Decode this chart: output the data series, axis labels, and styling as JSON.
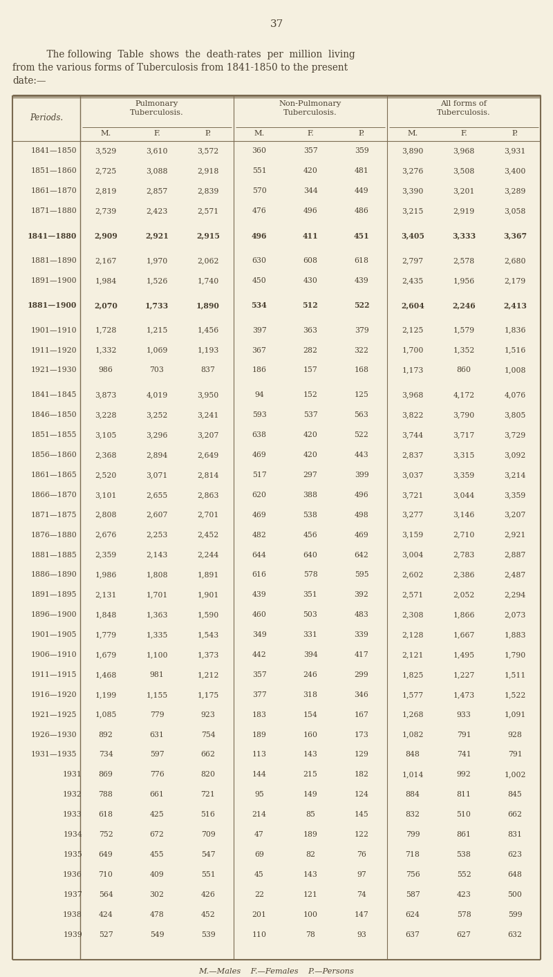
{
  "page_number": "37",
  "intro_line1": "    The following  Table  shows  the  death-rates  per  million  living",
  "intro_line2": "from the various forms of Tuberculosis from 1841-1850 to the present",
  "intro_line3": "date:—",
  "col_header_1a": "Pulmonary",
  "col_header_1b": "Tuberculosis.",
  "col_header_2a": "Non-Pulmonary",
  "col_header_2b": "Tuberculosis.",
  "col_header_3a": "All forms of",
  "col_header_3b": "Tuberculosis.",
  "sub_headers": [
    "M.",
    "F.",
    "P.",
    "M.",
    "F.",
    "P.",
    "M.",
    "F.",
    "P."
  ],
  "row_header": "Periods.",
  "footer": "M.—Males    F.—Females    P.—Persons",
  "rows": [
    {
      "period": "1841—1850",
      "vals": [
        "3,529",
        "3,610",
        "3,572",
        "360",
        "357",
        "359",
        "3,890",
        "3,968",
        "3,931"
      ],
      "bold": false,
      "indent": false,
      "gap_before": false
    },
    {
      "period": "1851—1860",
      "vals": [
        "2,725",
        "3,088",
        "2,918",
        "551",
        "420",
        "481",
        "3,276",
        "3,508",
        "3,400"
      ],
      "bold": false,
      "indent": false,
      "gap_before": false
    },
    {
      "period": "1861—1870",
      "vals": [
        "2,819",
        "2,857",
        "2,839",
        "570",
        "344",
        "449",
        "3,390",
        "3,201",
        "3,289"
      ],
      "bold": false,
      "indent": false,
      "gap_before": false
    },
    {
      "period": "1871—1880",
      "vals": [
        "2,739",
        "2,423",
        "2,571",
        "476",
        "496",
        "486",
        "3,215",
        "2,919",
        "3,058"
      ],
      "bold": false,
      "indent": false,
      "gap_before": false
    },
    {
      "period": "1841—1880",
      "vals": [
        "2,909",
        "2,921",
        "2,915",
        "496",
        "411",
        "451",
        "3,405",
        "3,333",
        "3,367"
      ],
      "bold": true,
      "indent": false,
      "gap_before": true
    },
    {
      "period": "1881—1890",
      "vals": [
        "2,167",
        "1,970",
        "2,062",
        "630",
        "608",
        "618",
        "2,797",
        "2,578",
        "2,680"
      ],
      "bold": false,
      "indent": false,
      "gap_before": true
    },
    {
      "period": "1891—1900",
      "vals": [
        "1,984",
        "1,526",
        "1,740",
        "450",
        "430",
        "439",
        "2,435",
        "1,956",
        "2,179"
      ],
      "bold": false,
      "indent": false,
      "gap_before": false
    },
    {
      "period": "1881—1900",
      "vals": [
        "2,070",
        "1,733",
        "1,890",
        "534",
        "512",
        "522",
        "2,604",
        "2,246",
        "2,413"
      ],
      "bold": true,
      "indent": false,
      "gap_before": true
    },
    {
      "period": "1901—1910",
      "vals": [
        "1,728",
        "1,215",
        "1,456",
        "397",
        "363",
        "379",
        "2,125",
        "1,579",
        "1,836"
      ],
      "bold": false,
      "indent": false,
      "gap_before": true
    },
    {
      "period": "1911—1920",
      "vals": [
        "1,332",
        "1,069",
        "1,193",
        "367",
        "282",
        "322",
        "1,700",
        "1,352",
        "1,516"
      ],
      "bold": false,
      "indent": false,
      "gap_before": false
    },
    {
      "period": "1921—1930",
      "vals": [
        "986",
        "703",
        "837",
        "186",
        "157",
        "168",
        "1,173",
        "860",
        "1,008"
      ],
      "bold": false,
      "indent": false,
      "gap_before": false
    },
    {
      "period": "1841—1845",
      "vals": [
        "3,873",
        "4,019",
        "3,950",
        "94",
        "152",
        "125",
        "3,968",
        "4,172",
        "4,076"
      ],
      "bold": false,
      "indent": false,
      "gap_before": true
    },
    {
      "period": "1846—1850",
      "vals": [
        "3,228",
        "3,252",
        "3,241",
        "593",
        "537",
        "563",
        "3,822",
        "3,790",
        "3,805"
      ],
      "bold": false,
      "indent": false,
      "gap_before": false
    },
    {
      "period": "1851—1855",
      "vals": [
        "3,105",
        "3,296",
        "3,207",
        "638",
        "420",
        "522",
        "3,744",
        "3,717",
        "3,729"
      ],
      "bold": false,
      "indent": false,
      "gap_before": false
    },
    {
      "period": "1856—1860",
      "vals": [
        "2,368",
        "2,894",
        "2,649",
        "469",
        "420",
        "443",
        "2,837",
        "3,315",
        "3,092"
      ],
      "bold": false,
      "indent": false,
      "gap_before": false
    },
    {
      "period": "1861—1865",
      "vals": [
        "2,520",
        "3,071",
        "2,814",
        "517",
        "297",
        "399",
        "3,037",
        "3,359",
        "3,214"
      ],
      "bold": false,
      "indent": false,
      "gap_before": false
    },
    {
      "period": "1866—1870",
      "vals": [
        "3,101",
        "2,655",
        "2,863",
        "620",
        "388",
        "496",
        "3,721",
        "3,044",
        "3,359"
      ],
      "bold": false,
      "indent": false,
      "gap_before": false
    },
    {
      "period": "1871—1875",
      "vals": [
        "2,808",
        "2,607",
        "2,701",
        "469",
        "538",
        "498",
        "3,277",
        "3,146",
        "3,207"
      ],
      "bold": false,
      "indent": false,
      "gap_before": false
    },
    {
      "period": "1876—1880",
      "vals": [
        "2,676",
        "2,253",
        "2,452",
        "482",
        "456",
        "469",
        "3,159",
        "2,710",
        "2,921"
      ],
      "bold": false,
      "indent": false,
      "gap_before": false
    },
    {
      "period": "1881—1885",
      "vals": [
        "2,359",
        "2,143",
        "2,244",
        "644",
        "640",
        "642",
        "3,004",
        "2,783",
        "2,887"
      ],
      "bold": false,
      "indent": false,
      "gap_before": false
    },
    {
      "period": "1886—1890",
      "vals": [
        "1,986",
        "1,808",
        "1,891",
        "616",
        "578",
        "595",
        "2,602",
        "2,386",
        "2,487"
      ],
      "bold": false,
      "indent": false,
      "gap_before": false
    },
    {
      "period": "1891—1895",
      "vals": [
        "2,131",
        "1,701",
        "1,901",
        "439",
        "351",
        "392",
        "2,571",
        "2,052",
        "2,294"
      ],
      "bold": false,
      "indent": false,
      "gap_before": false
    },
    {
      "period": "1896—1900",
      "vals": [
        "1,848",
        "1,363",
        "1,590",
        "460",
        "503",
        "483",
        "2,308",
        "1,866",
        "2,073"
      ],
      "bold": false,
      "indent": false,
      "gap_before": false
    },
    {
      "period": "1901—1905",
      "vals": [
        "1,779",
        "1,335",
        "1,543",
        "349",
        "331",
        "339",
        "2,128",
        "1,667",
        "1,883"
      ],
      "bold": false,
      "indent": false,
      "gap_before": false
    },
    {
      "period": "1906—1910",
      "vals": [
        "1,679",
        "1,100",
        "1,373",
        "442",
        "394",
        "417",
        "2,121",
        "1,495",
        "1,790"
      ],
      "bold": false,
      "indent": false,
      "gap_before": false
    },
    {
      "period": "1911—1915",
      "vals": [
        "1,468",
        "981",
        "1,212",
        "357",
        "246",
        "299",
        "1,825",
        "1,227",
        "1,511"
      ],
      "bold": false,
      "indent": false,
      "gap_before": false
    },
    {
      "period": "1916—1920",
      "vals": [
        "1,199",
        "1,155",
        "1,175",
        "377",
        "318",
        "346",
        "1,577",
        "1,473",
        "1,522"
      ],
      "bold": false,
      "indent": false,
      "gap_before": false
    },
    {
      "period": "1921—1925",
      "vals": [
        "1,085",
        "779",
        "923",
        "183",
        "154",
        "167",
        "1,268",
        "933",
        "1,091"
      ],
      "bold": false,
      "indent": false,
      "gap_before": false
    },
    {
      "period": "1926—1930",
      "vals": [
        "892",
        "631",
        "754",
        "189",
        "160",
        "173",
        "1,082",
        "791",
        "928"
      ],
      "bold": false,
      "indent": false,
      "gap_before": false
    },
    {
      "period": "1931—1935",
      "vals": [
        "734",
        "597",
        "662",
        "113",
        "143",
        "129",
        "848",
        "741",
        "791"
      ],
      "bold": false,
      "indent": false,
      "gap_before": false
    },
    {
      "period": "1931",
      "vals": [
        "869",
        "776",
        "820",
        "144",
        "215",
        "182",
        "1,014",
        "992",
        "1,002"
      ],
      "bold": false,
      "indent": true,
      "gap_before": false
    },
    {
      "period": "1932",
      "vals": [
        "788",
        "661",
        "721",
        "95",
        "149",
        "124",
        "884",
        "811",
        "845"
      ],
      "bold": false,
      "indent": true,
      "gap_before": false
    },
    {
      "period": "1933",
      "vals": [
        "618",
        "425",
        "516",
        "214",
        "85",
        "145",
        "832",
        "510",
        "662"
      ],
      "bold": false,
      "indent": true,
      "gap_before": false
    },
    {
      "period": "1934",
      "vals": [
        "752",
        "672",
        "709",
        "47",
        "189",
        "122",
        "799",
        "861",
        "831"
      ],
      "bold": false,
      "indent": true,
      "gap_before": false
    },
    {
      "period": "1935",
      "vals": [
        "649",
        "455",
        "547",
        "69",
        "82",
        "76",
        "718",
        "538",
        "623"
      ],
      "bold": false,
      "indent": true,
      "gap_before": false
    },
    {
      "period": "1936",
      "vals": [
        "710",
        "409",
        "551",
        "45",
        "143",
        "97",
        "756",
        "552",
        "648"
      ],
      "bold": false,
      "indent": true,
      "gap_before": false
    },
    {
      "period": "1937",
      "vals": [
        "564",
        "302",
        "426",
        "22",
        "121",
        "74",
        "587",
        "423",
        "500"
      ],
      "bold": false,
      "indent": true,
      "gap_before": false
    },
    {
      "period": "1938",
      "vals": [
        "424",
        "478",
        "452",
        "201",
        "100",
        "147",
        "624",
        "578",
        "599"
      ],
      "bold": false,
      "indent": true,
      "gap_before": false
    },
    {
      "period": "1939",
      "vals": [
        "527",
        "549",
        "539",
        "110",
        "78",
        "93",
        "637",
        "627",
        "632"
      ],
      "bold": false,
      "indent": true,
      "gap_before": false
    }
  ],
  "bg_color": "#f5f0e0",
  "text_color": "#4a4030",
  "border_color": "#7a6a50"
}
